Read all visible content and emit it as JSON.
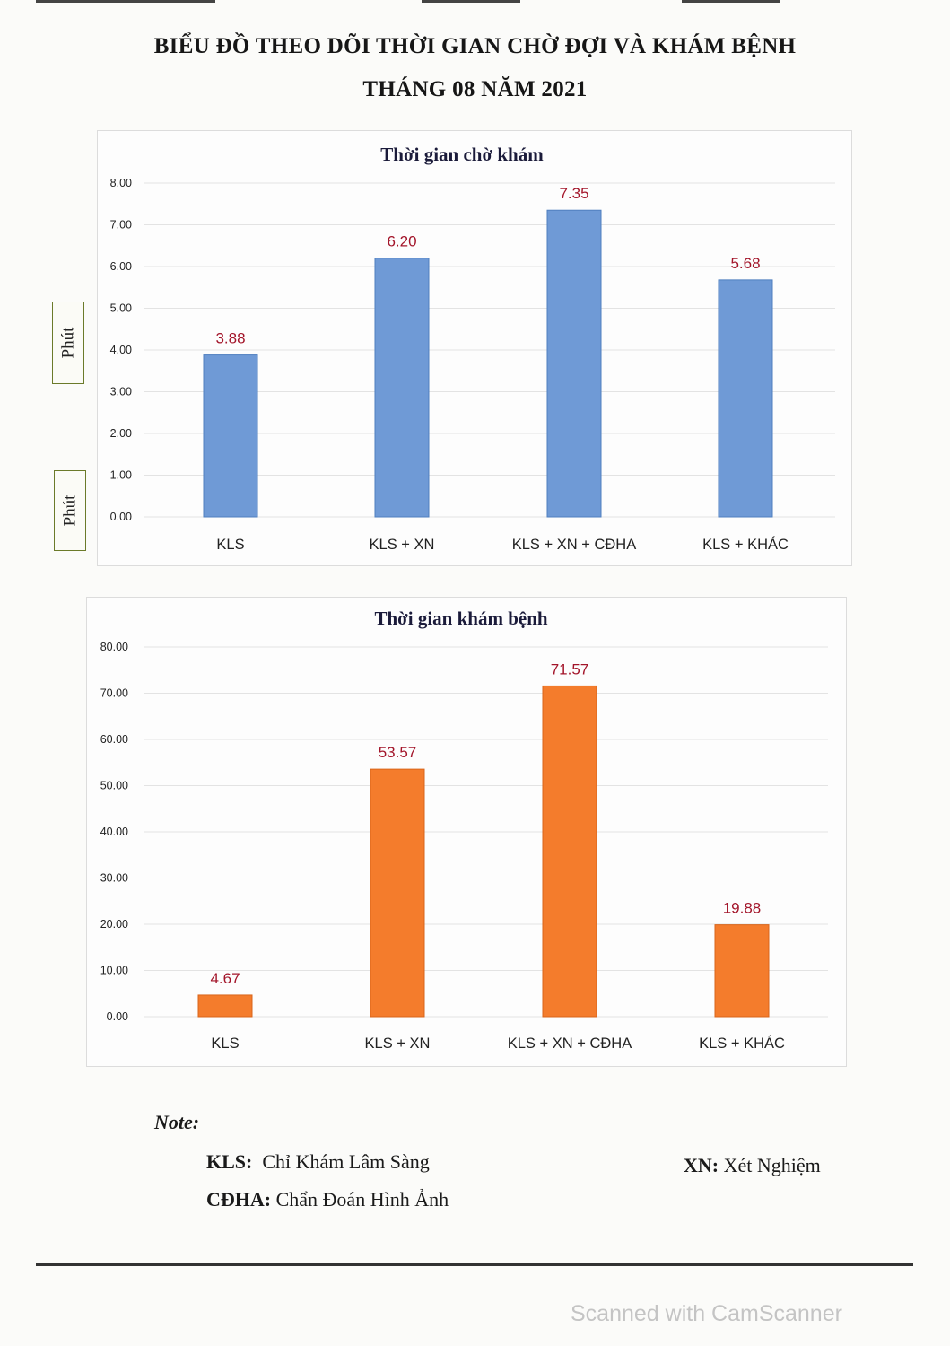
{
  "page": {
    "title_line1": "BIỂU ĐỒ THEO DÕI THỜI GIAN CHỜ ĐỢI VÀ KHÁM BỆNH",
    "title_line2": "THÁNG 08 NĂM 2021"
  },
  "y_label_boxes": [
    "Phút",
    "Phút"
  ],
  "chart_data": [
    {
      "type": "bar",
      "title": "Thời gian chờ khám",
      "categories": [
        "KLS",
        "KLS + XN",
        "KLS + XN + CĐHA",
        "KLS + KHÁC"
      ],
      "values": [
        3.88,
        6.2,
        7.35,
        5.68
      ],
      "value_labels": [
        "3.88",
        "6.20",
        "7.35",
        "5.68"
      ],
      "ylim": [
        0,
        8
      ],
      "yticks": [
        "0.00",
        "1.00",
        "2.00",
        "3.00",
        "4.00",
        "5.00",
        "6.00",
        "7.00",
        "8.00"
      ],
      "ylabel": "Phút",
      "grid": true,
      "bar_color": "#6f9ad6",
      "bar_stroke": "#4f7fbf",
      "label_color": "#a3152a"
    },
    {
      "type": "bar",
      "title": "Thời gian khám bệnh",
      "categories": [
        "KLS",
        "KLS + XN",
        "KLS + XN + CĐHA",
        "KLS + KHÁC"
      ],
      "values": [
        4.67,
        53.57,
        71.57,
        19.88
      ],
      "value_labels": [
        "4.67",
        "53.57",
        "71.57",
        "19.88"
      ],
      "ylim": [
        0,
        80
      ],
      "yticks": [
        "0.00",
        "10.00",
        "20.00",
        "30.00",
        "40.00",
        "50.00",
        "60.00",
        "70.00",
        "80.00"
      ],
      "ylabel": "Phút",
      "grid": true,
      "bar_color": "#f47c2c",
      "bar_stroke": "#d9651a",
      "label_color": "#a3152a"
    }
  ],
  "notes": {
    "heading": "Note:",
    "kls_abbr": "KLS:",
    "kls_text": "Chỉ Khám Lâm Sàng",
    "cdha_abbr": "CĐHA:",
    "cdha_text": "Chẩn Đoán Hình Ảnh",
    "xn_abbr": "XN:",
    "xn_text": "Xét Nghiệm"
  },
  "watermark": "Scanned with CamScanner"
}
